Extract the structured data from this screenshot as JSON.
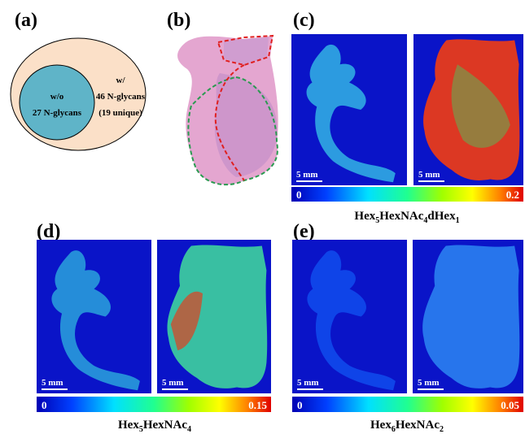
{
  "panels": {
    "a": {
      "label": "(a)",
      "inner": {
        "line1": "w/o",
        "line2": "27 N-glycans"
      },
      "outer": {
        "line1": "w/",
        "line2": "46 N-glycans",
        "line3": "(19 unique)"
      }
    },
    "b": {
      "label": "(b)"
    },
    "c": {
      "label": "(c)",
      "scale_bars": [
        "5 mm",
        "5 mm"
      ],
      "colorbar": {
        "min": "0",
        "max": "0.2"
      },
      "formula": [
        "Hex",
        "5",
        "HexNAc",
        "4",
        "dHex",
        "1"
      ]
    },
    "d": {
      "label": "(d)",
      "scale_bars": [
        "5 mm",
        "5 mm"
      ],
      "colorbar": {
        "min": "0",
        "max": "0.15"
      },
      "formula": [
        "Hex",
        "5",
        "HexNAc",
        "4"
      ]
    },
    "e": {
      "label": "(e)",
      "scale_bars": [
        "5 mm",
        "5 mm"
      ],
      "colorbar": {
        "min": "0",
        "max": "0.05"
      },
      "formula": [
        "Hex",
        "6",
        "HexNAc",
        "2"
      ]
    }
  }
}
